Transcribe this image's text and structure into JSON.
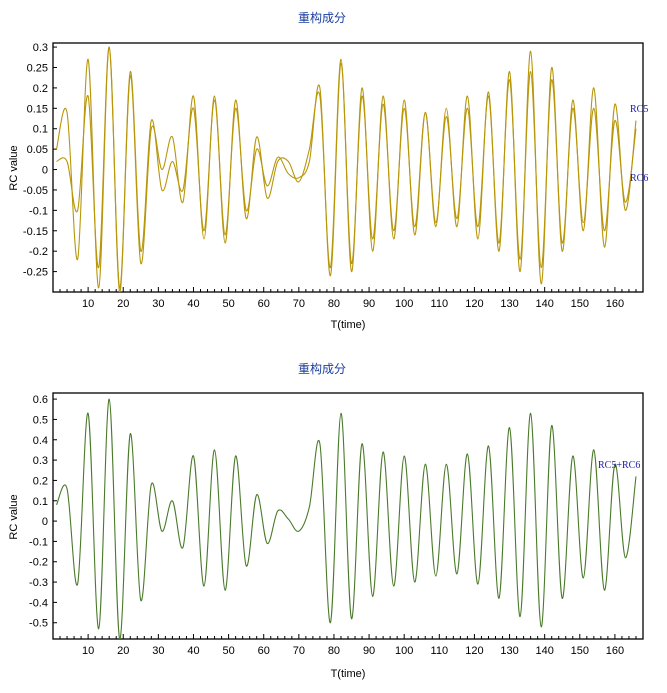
{
  "charts": [
    {
      "id": "top",
      "title": "重构成分",
      "xlabel": "T(time)",
      "ylabel": "RC value",
      "xlim": [
        0,
        168
      ],
      "ylim": [
        -0.3,
        0.31
      ],
      "xticks": [
        10,
        20,
        30,
        40,
        50,
        60,
        70,
        80,
        90,
        100,
        110,
        120,
        130,
        140,
        150,
        160
      ],
      "yticks": [
        0.3,
        0.25,
        0.2,
        0.15,
        0.1,
        0.05,
        0,
        -0.05,
        -0.1,
        -0.15,
        -0.2,
        -0.25
      ],
      "ytick_labels": [
        "0.3",
        "0.25",
        "0.2",
        "0.15",
        "0.1",
        "0.05",
        "0",
        "-0.05",
        "-0.1",
        "-0.15",
        "-0.2",
        "-0.25"
      ],
      "line_color": "#b8960a",
      "series_labels": [
        "RC5",
        "RC6"
      ]
    },
    {
      "id": "bottom",
      "title": "重构成分",
      "xlabel": "T(time)",
      "ylabel": "RC value",
      "xlim": [
        0,
        168
      ],
      "ylim": [
        -0.58,
        0.63
      ],
      "xticks": [
        10,
        20,
        30,
        40,
        50,
        60,
        70,
        80,
        90,
        100,
        110,
        120,
        130,
        140,
        150,
        160
      ],
      "yticks": [
        0.6,
        0.5,
        0.4,
        0.3,
        0.2,
        0.1,
        0,
        -0.1,
        -0.2,
        -0.3,
        -0.4,
        -0.5
      ],
      "ytick_labels": [
        "0.6",
        "0.5",
        "0.4",
        "0.3",
        "0.2",
        "0.1",
        "0",
        "-0.1",
        "-0.2",
        "-0.3",
        "-0.4",
        "-0.5"
      ],
      "line_color": "#4a7a2a",
      "series_labels": [
        "RC5+RC6"
      ]
    }
  ],
  "chart_data": [
    {
      "type": "line",
      "title": "重构成分",
      "xlabel": "T(time)",
      "ylabel": "RC value",
      "ylim": [
        -0.3,
        0.31
      ],
      "x": [
        1,
        4,
        7,
        10,
        13,
        16,
        19,
        22,
        25,
        28,
        31,
        34,
        37,
        40,
        43,
        46,
        49,
        52,
        55,
        58,
        61,
        64,
        67,
        70,
        73,
        76,
        79,
        82,
        85,
        88,
        91,
        94,
        97,
        100,
        103,
        106,
        109,
        112,
        115,
        118,
        121,
        124,
        127,
        130,
        133,
        136,
        139,
        142,
        145,
        148,
        151,
        154,
        157,
        160,
        163,
        166
      ],
      "series": [
        {
          "name": "RC5",
          "values": [
            0.05,
            0.14,
            -0.22,
            0.27,
            -0.29,
            0.3,
            -0.3,
            0.23,
            -0.23,
            0.1,
            0.0,
            0.08,
            -0.08,
            0.18,
            -0.17,
            0.18,
            -0.18,
            0.17,
            -0.12,
            0.08,
            -0.07,
            0.02,
            0.02,
            -0.03,
            0.05,
            0.18,
            -0.24,
            0.27,
            -0.25,
            0.2,
            -0.2,
            0.18,
            -0.17,
            0.17,
            -0.16,
            0.14,
            -0.14,
            0.15,
            -0.14,
            0.18,
            -0.17,
            0.19,
            -0.2,
            0.24,
            -0.25,
            0.29,
            -0.28,
            0.25,
            -0.2,
            0.17,
            -0.15,
            0.2,
            -0.19,
            0.16,
            -0.1,
            0.12
          ]
        },
        {
          "name": "RC6",
          "values": [
            0.02,
            0.02,
            -0.1,
            0.18,
            -0.24,
            0.3,
            -0.29,
            0.24,
            -0.2,
            0.12,
            -0.05,
            0.02,
            -0.05,
            0.15,
            -0.15,
            0.17,
            -0.16,
            0.15,
            -0.1,
            0.05,
            -0.04,
            0.03,
            -0.01,
            -0.02,
            0.02,
            0.2,
            -0.26,
            0.26,
            -0.23,
            0.18,
            -0.17,
            0.16,
            -0.15,
            0.15,
            -0.14,
            0.14,
            -0.13,
            0.13,
            -0.12,
            0.15,
            -0.14,
            0.18,
            -0.18,
            0.22,
            -0.22,
            0.24,
            -0.24,
            0.22,
            -0.18,
            0.15,
            -0.13,
            0.15,
            -0.15,
            0.12,
            -0.08,
            0.1
          ]
        }
      ]
    },
    {
      "type": "line",
      "title": "重构成分",
      "xlabel": "T(time)",
      "ylabel": "RC value",
      "ylim": [
        -0.58,
        0.63
      ],
      "x": [
        1,
        4,
        7,
        10,
        13,
        16,
        19,
        22,
        25,
        28,
        31,
        34,
        37,
        40,
        43,
        46,
        49,
        52,
        55,
        58,
        61,
        64,
        67,
        70,
        73,
        76,
        79,
        82,
        85,
        88,
        91,
        94,
        97,
        100,
        103,
        106,
        109,
        112,
        115,
        118,
        121,
        124,
        127,
        130,
        133,
        136,
        139,
        142,
        145,
        148,
        151,
        154,
        157,
        160,
        163,
        166
      ],
      "series": [
        {
          "name": "RC5+RC6",
          "values": [
            0.08,
            0.16,
            -0.31,
            0.53,
            -0.53,
            0.6,
            -0.58,
            0.43,
            -0.39,
            0.18,
            -0.05,
            0.1,
            -0.13,
            0.32,
            -0.32,
            0.35,
            -0.34,
            0.32,
            -0.22,
            0.13,
            -0.11,
            0.05,
            0.01,
            -0.05,
            0.07,
            0.38,
            -0.5,
            0.53,
            -0.48,
            0.38,
            -0.37,
            0.34,
            -0.32,
            0.32,
            -0.3,
            0.28,
            -0.27,
            0.28,
            -0.26,
            0.33,
            -0.31,
            0.37,
            -0.38,
            0.46,
            -0.47,
            0.53,
            -0.52,
            0.47,
            -0.38,
            0.32,
            -0.28,
            0.35,
            -0.34,
            0.28,
            -0.18,
            0.22
          ]
        }
      ]
    }
  ]
}
